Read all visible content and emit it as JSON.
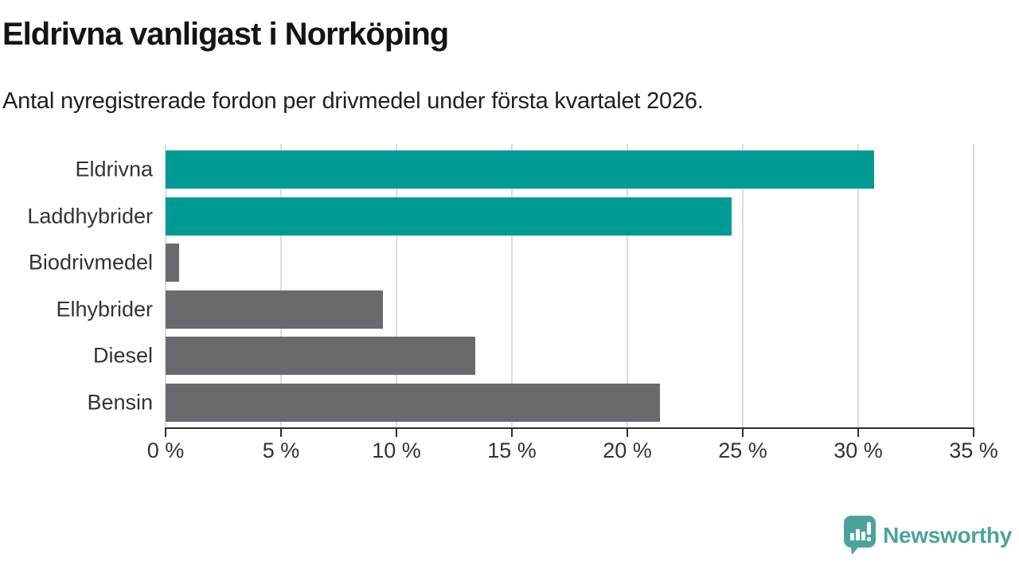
{
  "header": {
    "title": "Eldrivna vanligast i Norrköping",
    "subtitle": "Antal nyregistrerade fordon per drivmedel under första kvartalet 2026."
  },
  "chart_data": {
    "type": "bar",
    "orientation": "horizontal",
    "title": "Eldrivna vanligast i Norrköping",
    "subtitle": "Antal nyregistrerade fordon per drivmedel under första kvartalet 2026.",
    "categories": [
      "Eldrivna",
      "Laddhybrider",
      "Biodrivmedel",
      "Elhybrider",
      "Diesel",
      "Bensin"
    ],
    "values": [
      30.7,
      24.5,
      0.6,
      9.4,
      13.4,
      21.4
    ],
    "unit": "%",
    "bar_colors": [
      "#009b94",
      "#009b94",
      "#6c696e",
      "#6c696e",
      "#6c696e",
      "#6c696e"
    ],
    "highlight_color": "#009b94",
    "default_color": "#6c696e",
    "xlabel": "",
    "ylabel": "",
    "xlim": [
      0,
      35
    ],
    "xticks": [
      0,
      5,
      10,
      15,
      20,
      25,
      30,
      35
    ],
    "xtick_labels": [
      "0 %",
      "5 %",
      "10 %",
      "15 %",
      "20 %",
      "25 %",
      "30 %",
      "35 %"
    ],
    "grid": true,
    "legend": false,
    "gridline_color": "#dcdcdc",
    "axis_color": "#2e2e2e"
  },
  "footer": {
    "logo_text": "Newsworthy",
    "logo_color": "#4ba39c",
    "logo_icon": "speech-bubble-bar-chart-exclamation"
  }
}
